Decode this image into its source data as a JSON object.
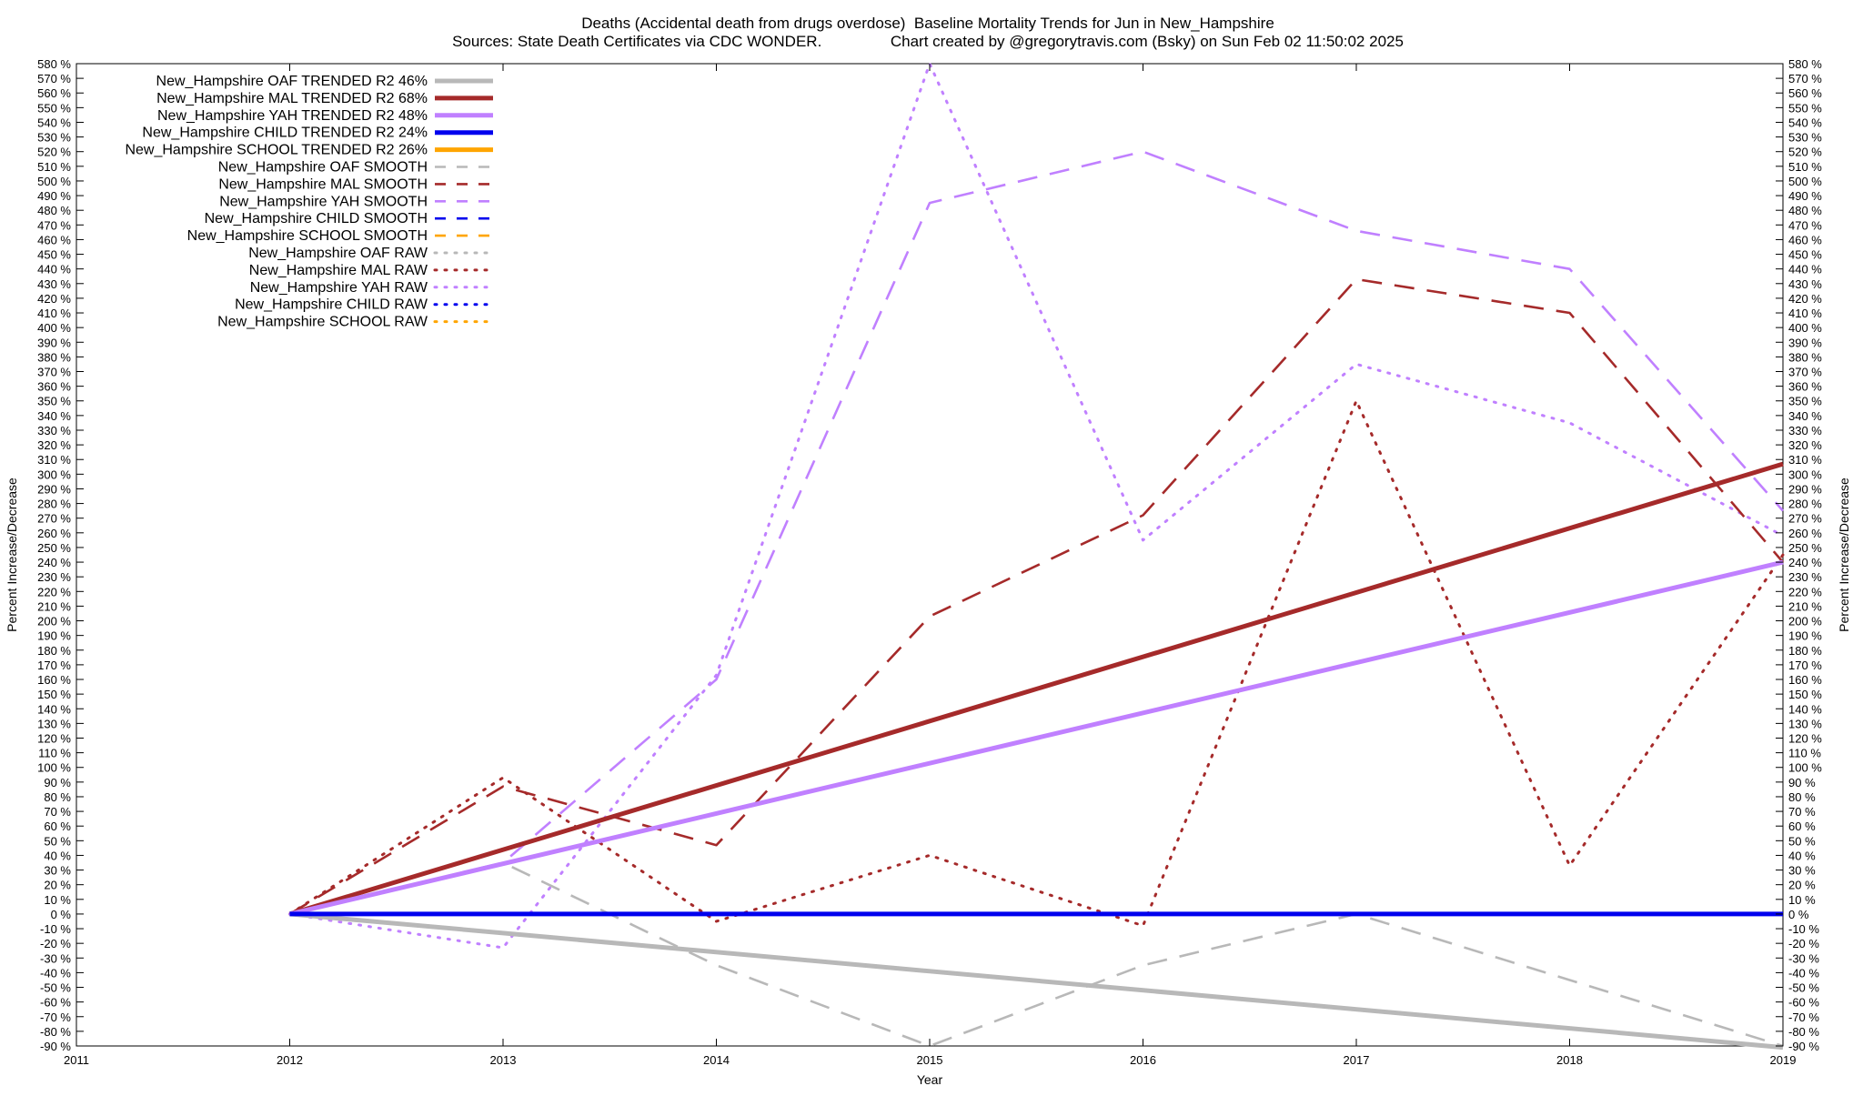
{
  "chart_data": {
    "type": "line",
    "title": "Deaths (Accidental death from drugs overdose)  Baseline Mortality Trends for Jun in New_Hampshire",
    "subtitle": "Sources: State Death Certificates via CDC WONDER.                Chart created by @gregorytravis.com (Bsky) on Sun Feb 02 11:50:02 2025",
    "xlabel": "Year",
    "ylabel": "Percent Increase/Decrease",
    "y2label": "Percent Increase/Decrease",
    "xlim": [
      2011,
      2019
    ],
    "ylim": [
      -90,
      580
    ],
    "ytick_step": 10,
    "ytick_suffix": " %",
    "x_ticks": [
      "2011",
      "2012",
      "2013",
      "2014",
      "2015",
      "2016",
      "2017",
      "2018",
      "2019"
    ],
    "grid": false,
    "legend_position": "top-left",
    "series": [
      {
        "name": "New_Hampshire OAF TRENDED R2  46%",
        "style": "trend",
        "color": "#b8b8b8",
        "x": [
          2012,
          2019
        ],
        "y": [
          0,
          -91
        ]
      },
      {
        "name": "New_Hampshire MAL TRENDED R2  68%",
        "style": "trend",
        "color": "#a52a2a",
        "x": [
          2012,
          2019
        ],
        "y": [
          0,
          307
        ]
      },
      {
        "name": "New_Hampshire YAH TRENDED R2  48%",
        "style": "trend",
        "color": "#c080ff",
        "x": [
          2012,
          2019
        ],
        "y": [
          0,
          240
        ]
      },
      {
        "name": "New_Hampshire CHILD TRENDED R2  24%",
        "style": "trend",
        "color": "#0000ee",
        "x": [
          2012,
          2019
        ],
        "y": [
          0,
          0
        ]
      },
      {
        "name": "New_Hampshire SCHOOL TRENDED R2  26%",
        "style": "trend",
        "color": "#ffa500",
        "x": [],
        "y": []
      },
      {
        "name": "New_Hampshire OAF SMOOTH",
        "style": "smooth",
        "color": "#b8b8b8",
        "x": [
          2012,
          2013,
          2014,
          2015,
          2016,
          2017,
          2018,
          2019
        ],
        "y": [
          0,
          35,
          -35,
          -90,
          -35,
          0,
          -45,
          -90
        ]
      },
      {
        "name": "New_Hampshire MAL SMOOTH",
        "style": "smooth",
        "color": "#a52a2a",
        "x": [
          2012,
          2013,
          2014,
          2015,
          2016,
          2017,
          2018,
          2019
        ],
        "y": [
          0,
          87,
          47,
          203,
          272,
          433,
          410,
          240
        ]
      },
      {
        "name": "New_Hampshire YAH SMOOTH",
        "style": "smooth",
        "color": "#c080ff",
        "x": [
          2012,
          2013,
          2014,
          2015,
          2016,
          2017,
          2018,
          2019
        ],
        "y": [
          0,
          35,
          160,
          485,
          520,
          466,
          440,
          275
        ]
      },
      {
        "name": "New_Hampshire CHILD SMOOTH",
        "style": "smooth",
        "color": "#0000ee",
        "x": [
          2012,
          2019
        ],
        "y": [
          0,
          0
        ]
      },
      {
        "name": "New_Hampshire SCHOOL SMOOTH",
        "style": "smooth",
        "color": "#ffa500",
        "x": [],
        "y": []
      },
      {
        "name": "New_Hampshire OAF RAW",
        "style": "raw",
        "color": "#b8b8b8",
        "x": [],
        "y": []
      },
      {
        "name": "New_Hampshire MAL RAW",
        "style": "raw",
        "color": "#a52a2a",
        "x": [
          2012,
          2013,
          2014,
          2015,
          2016,
          2017,
          2018,
          2019
        ],
        "y": [
          0,
          93,
          -5,
          40,
          -8,
          350,
          33,
          245
        ]
      },
      {
        "name": "New_Hampshire YAH RAW",
        "style": "raw",
        "color": "#c080ff",
        "x": [
          2012,
          2013,
          2014,
          2015,
          2016,
          2017,
          2018,
          2019
        ],
        "y": [
          0,
          -23,
          163,
          580,
          255,
          375,
          335,
          258
        ]
      },
      {
        "name": "New_Hampshire CHILD RAW",
        "style": "raw",
        "color": "#0000ee",
        "x": [],
        "y": []
      },
      {
        "name": "New_Hampshire SCHOOL RAW",
        "style": "raw",
        "color": "#ffa500",
        "x": [],
        "y": []
      }
    ]
  }
}
